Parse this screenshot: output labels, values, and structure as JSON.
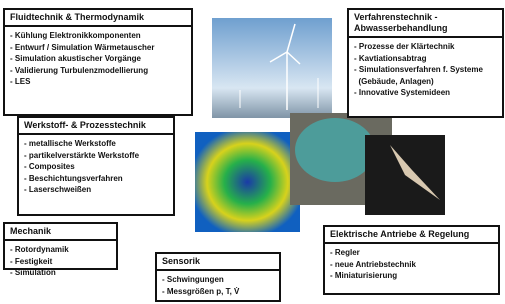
{
  "boxes": [
    {
      "title": [
        "Fluidtechnik & Thermodynamik"
      ],
      "items": [
        "- Kühlung Elektronikkomponenten",
        "- Entwurf / Simulation Wärmetauscher",
        "- Simulation akustischer Vorgänge",
        "- Validierung Turbulenzmodellierung",
        "- LES"
      ]
    },
    {
      "title": [
        "Verfahrenstechnik -",
        "Abwasserbehandlung"
      ],
      "items": [
        "- Prozesse der Klärtechnik",
        "- Kavtiationsabtrag",
        "- Simulationsverfahren f. Systeme",
        "  (Gebäude, Anlagen)",
        "- Innovative Systemideen"
      ]
    },
    {
      "title": [
        "Werkstoff-  & Prozesstechnik"
      ],
      "items": [
        "- metallische Werkstoffe",
        "- partikelverstärkte Werkstoffe",
        "- Composites",
        "- Beschichtungsverfahren",
        "- Laserschweißen"
      ]
    },
    {
      "title": [
        "Mechanik"
      ],
      "items": [
        "- Rotordynamik",
        "- Festigkeit",
        "- Simulation"
      ]
    },
    {
      "title": [
        "Sensorik"
      ],
      "items": [
        "- Schwingungen",
        "- Messgrößen p, T, V̇"
      ]
    },
    {
      "title": [
        "Elektrische Antriebe & Regelung"
      ],
      "items": [
        "- Regler",
        "- neue Antriebstechnik",
        "- Miniaturisierung"
      ]
    }
  ]
}
